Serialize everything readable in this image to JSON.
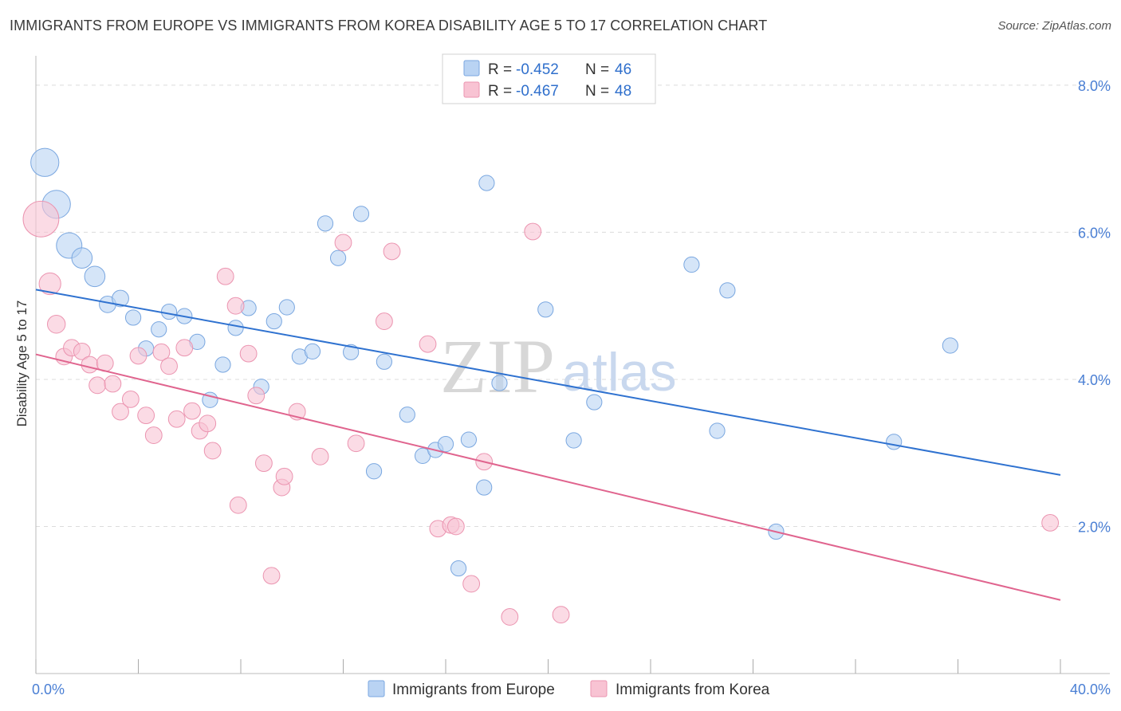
{
  "title": "IMMIGRANTS FROM EUROPE VS IMMIGRANTS FROM KOREA DISABILITY AGE 5 TO 17 CORRELATION CHART",
  "source": "Source: ZipAtlas.com",
  "watermark": {
    "zip": "ZIP",
    "atlas": "atlas"
  },
  "colors": {
    "europe_fill": "#b9d3f3",
    "europe_stroke": "#7aa7e0",
    "europe_line": "#2f72d0",
    "korea_fill": "#f8c3d3",
    "korea_stroke": "#eb94b0",
    "korea_line": "#e0648e",
    "grid": "#dcdcdc",
    "tick_text": "#4a7fd4"
  },
  "legend": {
    "rows": [
      {
        "r_label": "R = ",
        "r_value": "-0.452",
        "n_label": "N = ",
        "n_value": "46"
      },
      {
        "r_label": "R = ",
        "r_value": "-0.467",
        "n_label": "N = ",
        "n_value": "48"
      }
    ]
  },
  "bottom_legend": [
    "Immigrants from Europe",
    "Immigrants from Korea"
  ],
  "chart_data": {
    "type": "scatter",
    "ylabel": "Disability Age 5 to 17",
    "x_tick_labels": [
      "0.0%",
      "40.0%"
    ],
    "y_tick_labels": [
      "2.0%",
      "4.0%",
      "6.0%",
      "8.0%"
    ],
    "xlim": [
      0,
      40
    ],
    "ylim": [
      0,
      8.4
    ],
    "y_gridlines": [
      2,
      4,
      6,
      8
    ],
    "grid": true,
    "legend_position": "top-center",
    "series": [
      {
        "name": "Immigrants from Europe",
        "trend": {
          "x": [
            0,
            40
          ],
          "y": [
            5.22,
            2.7
          ]
        },
        "points": [
          [
            0.35,
            6.95,
            2.2
          ],
          [
            0.8,
            6.38,
            2.2
          ],
          [
            1.3,
            5.82,
            2.0
          ],
          [
            1.8,
            5.65,
            1.6
          ],
          [
            2.3,
            5.4,
            1.6
          ],
          [
            2.8,
            5.02,
            1.3
          ],
          [
            3.3,
            5.1,
            1.3
          ],
          [
            3.8,
            4.84,
            1.2
          ],
          [
            4.3,
            4.42,
            1.2
          ],
          [
            4.8,
            4.68,
            1.2
          ],
          [
            5.2,
            4.92,
            1.2
          ],
          [
            5.8,
            4.86,
            1.2
          ],
          [
            6.3,
            4.51,
            1.2
          ],
          [
            6.8,
            3.72,
            1.2
          ],
          [
            7.3,
            4.2,
            1.2
          ],
          [
            7.8,
            4.7,
            1.2
          ],
          [
            8.3,
            4.97,
            1.2
          ],
          [
            8.8,
            3.9,
            1.2
          ],
          [
            9.3,
            4.79,
            1.2
          ],
          [
            9.8,
            4.98,
            1.2
          ],
          [
            10.3,
            4.31,
            1.2
          ],
          [
            10.8,
            4.38,
            1.2
          ],
          [
            11.3,
            6.12,
            1.2
          ],
          [
            11.8,
            5.65,
            1.2
          ],
          [
            12.3,
            4.37,
            1.2
          ],
          [
            12.7,
            6.25,
            1.2
          ],
          [
            13.2,
            2.75,
            1.2
          ],
          [
            13.6,
            4.24,
            1.2
          ],
          [
            14.5,
            3.52,
            1.2
          ],
          [
            15.1,
            2.96,
            1.2
          ],
          [
            15.6,
            3.04,
            1.2
          ],
          [
            16.0,
            3.12,
            1.2
          ],
          [
            16.5,
            1.43,
            1.2
          ],
          [
            16.9,
            3.18,
            1.2
          ],
          [
            17.5,
            2.53,
            1.2
          ],
          [
            17.6,
            6.67,
            1.2
          ],
          [
            18.1,
            3.95,
            1.2
          ],
          [
            19.9,
            4.95,
            1.2
          ],
          [
            21.0,
            3.17,
            1.2
          ],
          [
            21.8,
            3.69,
            1.2
          ],
          [
            25.6,
            5.56,
            1.2
          ],
          [
            26.6,
            3.3,
            1.2
          ],
          [
            27.0,
            5.21,
            1.2
          ],
          [
            28.9,
            1.93,
            1.2
          ],
          [
            33.5,
            3.15,
            1.2
          ],
          [
            35.7,
            4.46,
            1.2
          ]
        ]
      },
      {
        "name": "Immigrants from Korea",
        "trend": {
          "x": [
            0,
            40
          ],
          "y": [
            4.34,
            1.0
          ]
        },
        "points": [
          [
            0.2,
            6.18,
            2.8
          ],
          [
            0.55,
            5.3,
            1.7
          ],
          [
            0.8,
            4.75,
            1.4
          ],
          [
            1.1,
            4.31,
            1.3
          ],
          [
            1.4,
            4.43,
            1.3
          ],
          [
            1.8,
            4.38,
            1.3
          ],
          [
            2.1,
            4.2,
            1.3
          ],
          [
            2.4,
            3.92,
            1.3
          ],
          [
            2.7,
            4.22,
            1.3
          ],
          [
            3.0,
            3.94,
            1.3
          ],
          [
            3.3,
            3.56,
            1.3
          ],
          [
            3.7,
            3.73,
            1.3
          ],
          [
            4.0,
            4.32,
            1.3
          ],
          [
            4.3,
            3.51,
            1.3
          ],
          [
            4.6,
            3.24,
            1.3
          ],
          [
            4.9,
            4.37,
            1.3
          ],
          [
            5.2,
            4.18,
            1.3
          ],
          [
            5.5,
            3.46,
            1.3
          ],
          [
            5.8,
            4.43,
            1.3
          ],
          [
            6.1,
            3.57,
            1.3
          ],
          [
            6.4,
            3.3,
            1.3
          ],
          [
            6.7,
            3.4,
            1.3
          ],
          [
            6.9,
            3.03,
            1.3
          ],
          [
            7.4,
            5.4,
            1.3
          ],
          [
            7.8,
            5.0,
            1.3
          ],
          [
            7.9,
            2.29,
            1.3
          ],
          [
            8.3,
            4.35,
            1.3
          ],
          [
            8.6,
            3.78,
            1.3
          ],
          [
            8.9,
            2.86,
            1.3
          ],
          [
            9.2,
            1.33,
            1.3
          ],
          [
            9.6,
            2.53,
            1.3
          ],
          [
            9.7,
            2.68,
            1.3
          ],
          [
            10.2,
            3.56,
            1.3
          ],
          [
            11.1,
            2.95,
            1.3
          ],
          [
            12.0,
            5.86,
            1.3
          ],
          [
            12.5,
            3.13,
            1.3
          ],
          [
            13.6,
            4.79,
            1.3
          ],
          [
            13.9,
            5.74,
            1.3
          ],
          [
            15.3,
            4.48,
            1.3
          ],
          [
            15.7,
            1.97,
            1.3
          ],
          [
            16.2,
            2.02,
            1.3
          ],
          [
            16.4,
            2.0,
            1.3
          ],
          [
            17.0,
            1.22,
            1.3
          ],
          [
            17.5,
            2.88,
            1.3
          ],
          [
            18.5,
            0.77,
            1.3
          ],
          [
            19.4,
            6.01,
            1.3
          ],
          [
            20.5,
            0.8,
            1.3
          ],
          [
            39.6,
            2.05,
            1.3
          ]
        ]
      }
    ]
  }
}
